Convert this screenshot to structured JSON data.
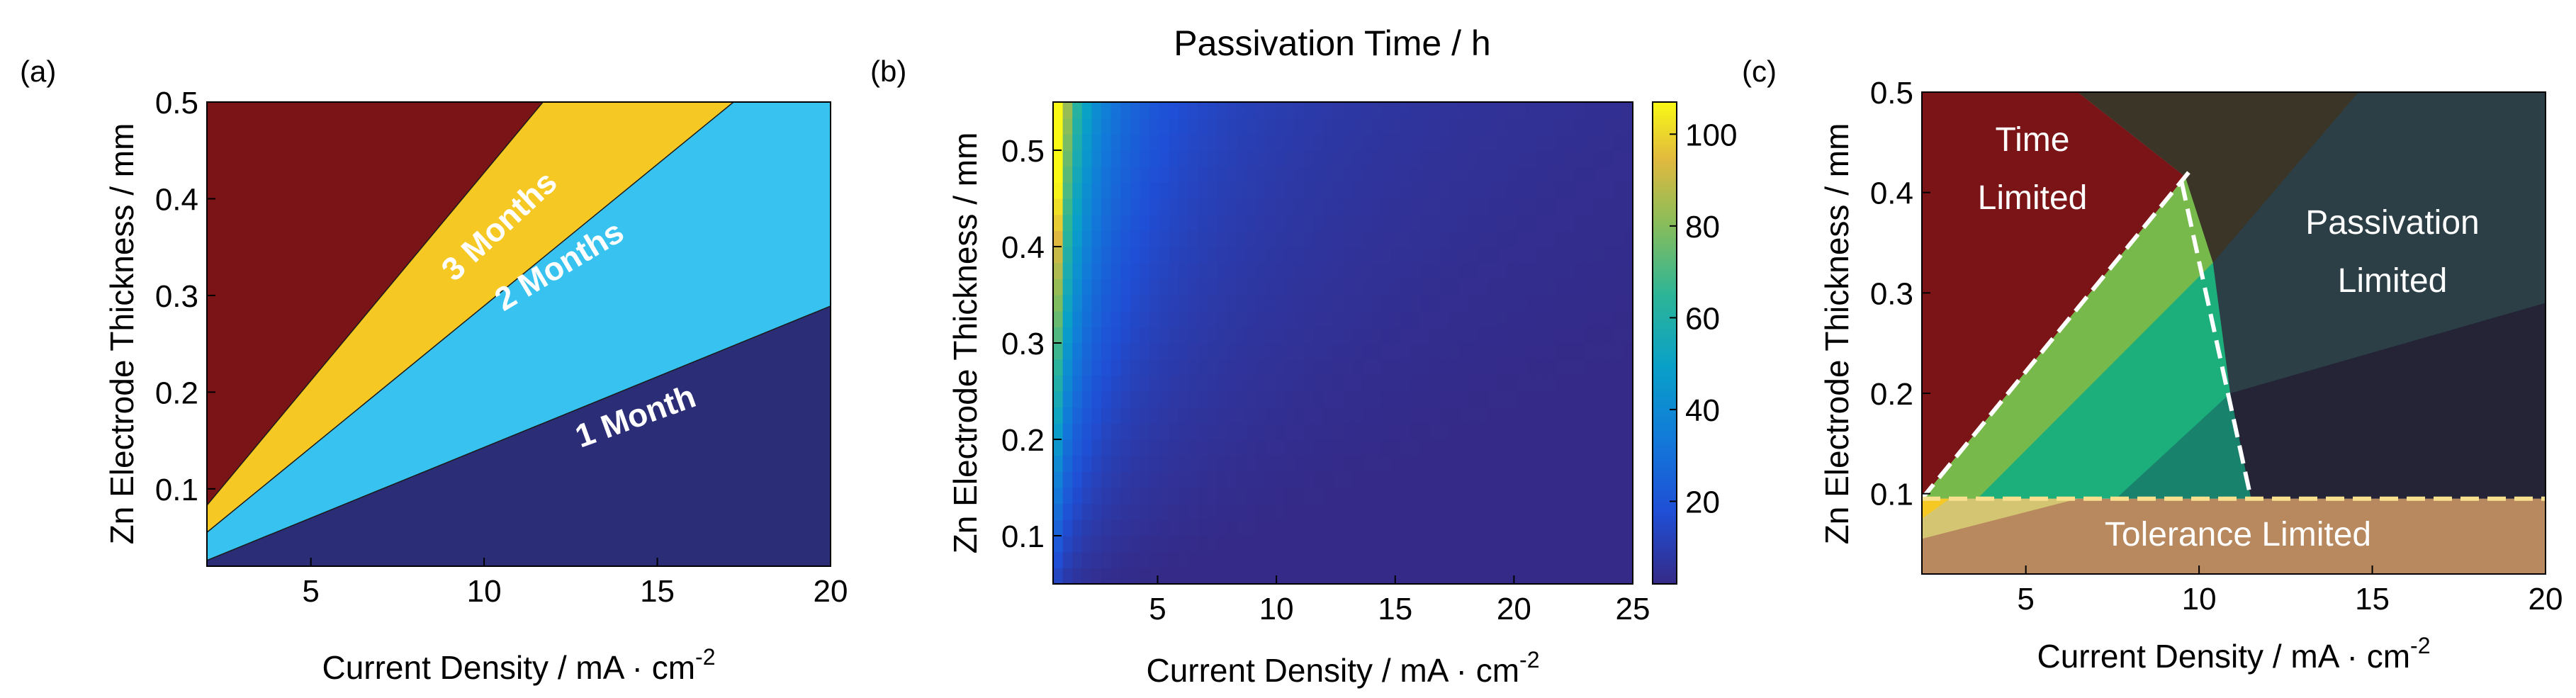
{
  "colors": {
    "dark_red": "#7b1416",
    "yellow": "#f5c823",
    "cyan": "#37c2ef",
    "navy": "#2b2d77",
    "dark_slate": "#2c3f46",
    "dark_navy": "#242436",
    "brown_olive": "#3b3528",
    "green": "#78b94b",
    "teal_green": "#1cae7b",
    "dark_teal": "#18826c",
    "tan": "#b8885e",
    "khaki": "#d4c572",
    "dash": "#ffffff",
    "yellow_dash": "#f8e08e"
  },
  "chart_data": [
    {
      "panel_label": "(a)",
      "type": "area",
      "xlabel": "Current Density  /  mA · cm",
      "xlabel_sup": "-2",
      "ylabel": "Zn Electrode Thickness  /  mm",
      "xlim": [
        2,
        20
      ],
      "ylim": [
        0.02,
        0.5
      ],
      "xticks": [
        5,
        10,
        15,
        20
      ],
      "yticks": [
        0.1,
        0.2,
        0.3,
        0.4,
        0.5
      ],
      "grid": false,
      "boundaries": [
        {
          "x": [
            2,
            20
          ],
          "y": [
            0.026,
            0.289
          ]
        },
        {
          "x": [
            2,
            17.2
          ],
          "y": [
            0.055,
            0.5
          ]
        },
        {
          "x": [
            2,
            11.7
          ],
          "y": [
            0.083,
            0.5
          ]
        }
      ],
      "regions": [
        {
          "label": "1 Month",
          "color_key": "navy"
        },
        {
          "label": "2 Months",
          "color_key": "cyan"
        },
        {
          "label": "3 Months",
          "color_key": "yellow"
        },
        {
          "label": "",
          "color_key": "dark_red"
        }
      ]
    },
    {
      "panel_label": "(b)",
      "type": "heatmap",
      "title": "Passivation Time  /  h",
      "xlabel": "Current Density /  mA · cm",
      "xlabel_sup": "-2",
      "ylabel": "Zn Electrode Thickness  /  mm",
      "xlim": [
        0.6,
        25
      ],
      "ylim": [
        0.05,
        0.55
      ],
      "xticks": [
        5,
        10,
        15,
        20,
        25
      ],
      "yticks": [
        0.1,
        0.2,
        0.3,
        0.4,
        0.5
      ],
      "colorbar": {
        "min": 2,
        "max": 107,
        "ticks": [
          20,
          40,
          60,
          80,
          100
        ]
      },
      "model": "passivation time ≈ 102 · thickness / (0.55 · current density), clipped at 107 h",
      "grid": false
    },
    {
      "panel_label": "(c)",
      "type": "area",
      "xlabel": "Current Density  /  mA · cm",
      "xlabel_sup": "-2",
      "ylabel": "Zn Electrode Thickness  /  mm",
      "xlim": [
        2,
        20
      ],
      "ylim": [
        0.02,
        0.5
      ],
      "xticks": [
        5,
        10,
        15,
        20
      ],
      "yticks": [
        0.1,
        0.2,
        0.3,
        0.4,
        0.5
      ],
      "grid": false,
      "dashed_lines": [
        {
          "x": [
            2,
            9.7
          ],
          "y": [
            0.095,
            0.42
          ],
          "color_key": "dash"
        },
        {
          "x": [
            9.5,
            11.5
          ],
          "y": [
            0.41,
            0.095
          ],
          "color_key": "dash"
        },
        {
          "x": [
            2,
            20
          ],
          "y": [
            0.095,
            0.095
          ],
          "color_key": "yellow_dash"
        }
      ],
      "region_labels": [
        {
          "lines": [
            "Time",
            "Limited"
          ]
        },
        {
          "lines": [
            "Passivation",
            "Limited"
          ]
        },
        {
          "lines": [
            "Tolerance Limited"
          ]
        }
      ]
    }
  ]
}
